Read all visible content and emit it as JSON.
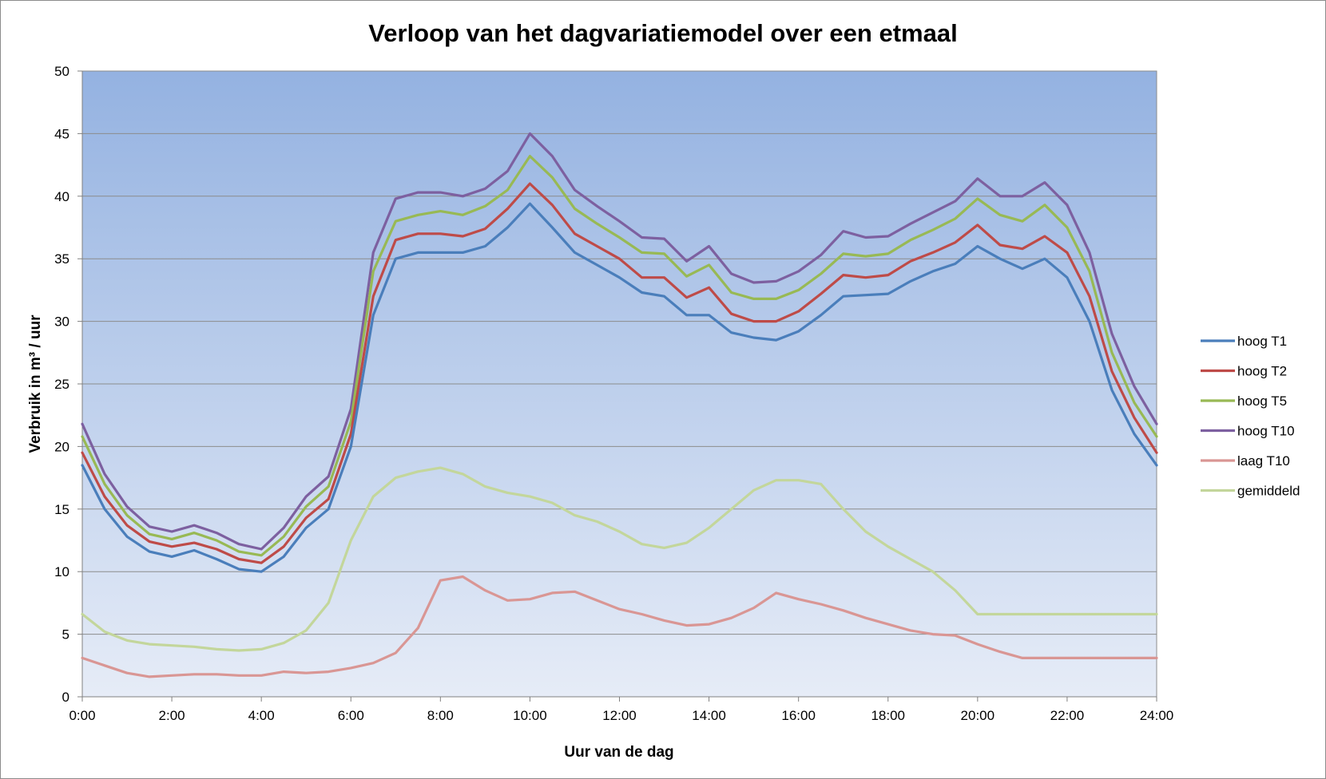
{
  "chart_data": {
    "type": "line",
    "title": "Verloop van het dagvariatiemodel over een etmaal",
    "xlabel": "Uur van de dag",
    "ylabel": "Verbruik in m³ / uur",
    "ylim": [
      0,
      50
    ],
    "yticks": [
      "0",
      "5",
      "10",
      "15",
      "20",
      "25",
      "30",
      "35",
      "40",
      "45",
      "50"
    ],
    "xticks": [
      "0:00",
      "2:00",
      "4:00",
      "6:00",
      "8:00",
      "10:00",
      "12:00",
      "14:00",
      "16:00",
      "18:00",
      "20:00",
      "22:00",
      "24:00"
    ],
    "grid": "horizontal",
    "legend_position": "right",
    "x_hours": [
      0,
      0.5,
      1,
      1.5,
      2,
      2.5,
      3,
      3.5,
      4,
      4.5,
      5,
      5.5,
      6,
      6.5,
      7,
      7.5,
      8,
      8.5,
      9,
      9.5,
      10,
      10.5,
      11,
      11.5,
      12,
      12.5,
      13,
      13.5,
      14,
      14.5,
      15,
      15.5,
      16,
      16.5,
      17,
      17.5,
      18,
      18.5,
      19,
      19.5,
      20,
      20.5,
      21,
      21.5,
      22,
      22.5,
      23,
      23.5,
      24
    ],
    "series": [
      {
        "name": "hoog T1",
        "color": "#4a7ebb",
        "values": [
          18.5,
          15.0,
          12.8,
          11.6,
          11.2,
          11.7,
          11.0,
          10.2,
          10.0,
          11.2,
          13.5,
          15.0,
          20.0,
          30.5,
          35.0,
          35.5,
          35.5,
          35.5,
          36.0,
          37.5,
          39.4,
          37.5,
          35.5,
          34.5,
          33.5,
          32.3,
          32.0,
          30.5,
          30.5,
          29.1,
          28.7,
          28.5,
          29.2,
          30.5,
          32.0,
          32.1,
          32.2,
          33.2,
          34.0,
          34.6,
          36.0,
          35.0,
          34.2,
          35.0,
          33.5,
          30.0,
          24.5,
          21.0,
          18.5
        ]
      },
      {
        "name": "hoog T2",
        "color": "#be4b48",
        "values": [
          19.5,
          16.0,
          13.7,
          12.4,
          12.0,
          12.3,
          11.8,
          11.0,
          10.7,
          12.0,
          14.3,
          15.8,
          21.0,
          32.0,
          36.5,
          37.0,
          37.0,
          36.8,
          37.4,
          39.0,
          41.0,
          39.3,
          37.0,
          36.0,
          35.0,
          33.5,
          33.5,
          31.9,
          32.7,
          30.6,
          30.0,
          30.0,
          30.8,
          32.2,
          33.7,
          33.5,
          33.7,
          34.8,
          35.5,
          36.3,
          37.7,
          36.1,
          35.8,
          36.8,
          35.5,
          32.0,
          26.0,
          22.3,
          19.5
        ]
      },
      {
        "name": "hoog T5",
        "color": "#98b954",
        "values": [
          20.8,
          17.0,
          14.5,
          13.0,
          12.6,
          13.1,
          12.5,
          11.6,
          11.3,
          12.8,
          15.2,
          16.8,
          22.0,
          34.0,
          38.0,
          38.5,
          38.8,
          38.5,
          39.2,
          40.5,
          43.2,
          41.5,
          39.0,
          37.8,
          36.7,
          35.5,
          35.4,
          33.6,
          34.5,
          32.3,
          31.8,
          31.8,
          32.5,
          33.8,
          35.4,
          35.2,
          35.4,
          36.5,
          37.3,
          38.2,
          39.8,
          38.5,
          38.0,
          39.3,
          37.5,
          34.0,
          27.5,
          23.5,
          20.8
        ]
      },
      {
        "name": "hoog T10",
        "color": "#7d60a0",
        "values": [
          21.8,
          17.8,
          15.2,
          13.6,
          13.2,
          13.7,
          13.1,
          12.2,
          11.8,
          13.5,
          16.0,
          17.6,
          23.0,
          35.5,
          39.8,
          40.3,
          40.3,
          40.0,
          40.6,
          42.0,
          45.0,
          43.2,
          40.5,
          39.2,
          38.0,
          36.7,
          36.6,
          34.8,
          36.0,
          33.8,
          33.1,
          33.2,
          34.0,
          35.3,
          37.2,
          36.7,
          36.8,
          37.8,
          38.7,
          39.6,
          41.4,
          40.0,
          40.0,
          41.1,
          39.3,
          35.5,
          29.0,
          24.8,
          21.8
        ]
      },
      {
        "name": "laag T10",
        "color": "#d99694",
        "values": [
          3.1,
          2.5,
          1.9,
          1.6,
          1.7,
          1.8,
          1.8,
          1.7,
          1.7,
          2.0,
          1.9,
          2.0,
          2.3,
          2.7,
          3.5,
          5.5,
          9.3,
          9.6,
          8.5,
          7.7,
          7.8,
          8.3,
          8.4,
          7.7,
          7.0,
          6.6,
          6.1,
          5.7,
          5.8,
          6.3,
          7.1,
          8.3,
          7.8,
          7.4,
          6.9,
          6.3,
          5.8,
          5.3,
          5.0,
          4.9,
          4.2,
          3.6,
          3.1,
          3.1,
          3.1,
          3.1,
          3.1,
          3.1,
          3.1
        ]
      },
      {
        "name": "gemiddeld",
        "color": "#c3d69b",
        "values": [
          6.6,
          5.2,
          4.5,
          4.2,
          4.1,
          4.0,
          3.8,
          3.7,
          3.8,
          4.3,
          5.3,
          7.5,
          12.5,
          16.0,
          17.5,
          18.0,
          18.3,
          17.8,
          16.8,
          16.3,
          16.0,
          15.5,
          14.5,
          14.0,
          13.2,
          12.2,
          11.9,
          12.3,
          13.5,
          15.0,
          16.5,
          17.3,
          17.3,
          17.0,
          15.0,
          13.2,
          12.0,
          11.0,
          10.0,
          8.5,
          6.6,
          6.6,
          6.6,
          6.6,
          6.6,
          6.6,
          6.6,
          6.6,
          6.6
        ]
      }
    ]
  }
}
